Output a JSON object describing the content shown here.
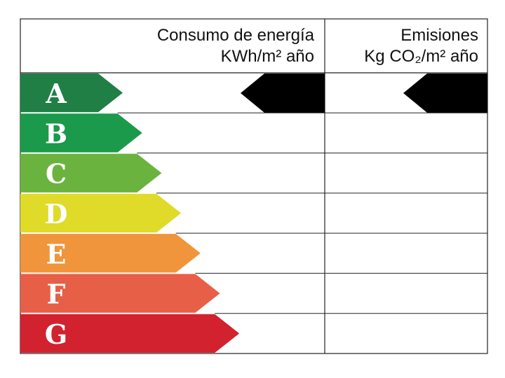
{
  "header": {
    "energy": {
      "title": "Consumo de energía",
      "unit": "KWh/m² año"
    },
    "emissions": {
      "title": "Emisiones",
      "unit": "Kg CO₂/m² año"
    }
  },
  "rows": [
    {
      "letter": "A",
      "color": "#1f7f45"
    },
    {
      "letter": "B",
      "color": "#1a9a4a"
    },
    {
      "letter": "C",
      "color": "#6bb33f"
    },
    {
      "letter": "D",
      "color": "#dfdb28"
    },
    {
      "letter": "E",
      "color": "#f0953b"
    },
    {
      "letter": "F",
      "color": "#e75f46"
    },
    {
      "letter": "G",
      "color": "#d2222f"
    }
  ]
}
